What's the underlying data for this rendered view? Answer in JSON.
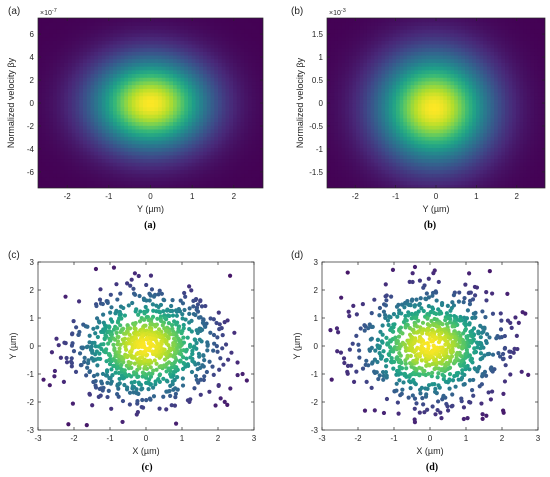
{
  "colors": {
    "axis": "#262626",
    "viridis": [
      "#440154",
      "#482878",
      "#3e4a89",
      "#31688e",
      "#26828e",
      "#1f9e89",
      "#35b779",
      "#6ece58",
      "#b5de2b",
      "#fde725"
    ]
  },
  "chart_data": [
    {
      "type": "heatmap",
      "panel": "(a)",
      "caption": "(a)",
      "xlabel": "Y (µm)",
      "ylabel": "Normalized velocity βy",
      "exponent": "×10",
      "exponent_power": "-7",
      "xlim": [
        -2.7,
        2.7
      ],
      "ylim": [
        -7.4,
        7.4
      ],
      "xticks": [
        -2,
        -1,
        0,
        1,
        2
      ],
      "xtick_labels": [
        "-2",
        "-1",
        "0",
        "1",
        "2"
      ],
      "yticks": [
        -6,
        -4,
        -2,
        0,
        2,
        4,
        6
      ],
      "ytick_labels": [
        "-6",
        "-4",
        "-2",
        "0",
        "2",
        "4",
        "6"
      ],
      "grid": false,
      "distribution": {
        "model": "gaussian",
        "center_x": 0,
        "center_y": 0,
        "sigma_x": 0.95,
        "sigma_y": 2.7
      }
    },
    {
      "type": "heatmap",
      "panel": "(b)",
      "caption": "(b)",
      "xlabel": "Y (µm)",
      "ylabel": "Normalized velocity βy",
      "exponent": "×10",
      "exponent_power": "-3",
      "xlim": [
        -2.7,
        2.7
      ],
      "ylim": [
        -1.85,
        1.85
      ],
      "xticks": [
        -2,
        -1,
        0,
        1,
        2
      ],
      "xtick_labels": [
        "-2",
        "-1",
        "0",
        "1",
        "2"
      ],
      "yticks": [
        -1.5,
        -1,
        -0.5,
        0,
        0.5,
        1,
        1.5
      ],
      "ytick_labels": [
        "-1.5",
        "-1",
        "-0.5",
        "0",
        "0.5",
        "1",
        "1.5"
      ],
      "grid": false,
      "distribution": {
        "model": "gaussian",
        "center_x": -0.05,
        "center_y": -0.1,
        "sigma_x": 0.95,
        "sigma_y": 0.8
      }
    },
    {
      "type": "scatter",
      "panel": "(c)",
      "caption": "(c)",
      "xlabel": "X (µm)",
      "ylabel": "Y (µm)",
      "xlim": [
        -3,
        3
      ],
      "ylim": [
        -3,
        3
      ],
      "xticks": [
        -3,
        -2,
        -1,
        0,
        1,
        2,
        3
      ],
      "xtick_labels": [
        "-3",
        "-2",
        "-1",
        "0",
        "1",
        "2",
        "3"
      ],
      "yticks": [
        -3,
        -2,
        -1,
        0,
        1,
        2,
        3
      ],
      "ytick_labels": [
        "-3",
        "-2",
        "-1",
        "0",
        "1",
        "2",
        "3"
      ],
      "grid": false,
      "distribution": {
        "model": "gaussian",
        "count": 900,
        "sigma_x": 1.0,
        "sigma_y": 1.0,
        "seed": 11
      },
      "color_by": "density"
    },
    {
      "type": "scatter",
      "panel": "(d)",
      "caption": "(d)",
      "xlabel": "X (µm)",
      "ylabel": "Y (µm)",
      "xlim": [
        -3,
        3
      ],
      "ylim": [
        -3,
        3
      ],
      "xticks": [
        -3,
        -2,
        -1,
        0,
        1,
        2,
        3
      ],
      "xtick_labels": [
        "-3",
        "-2",
        "-1",
        "0",
        "1",
        "2",
        "3"
      ],
      "yticks": [
        -3,
        -2,
        -1,
        0,
        1,
        2,
        3
      ],
      "ytick_labels": [
        "-3",
        "-2",
        "-1",
        "0",
        "1",
        "2",
        "3"
      ],
      "grid": false,
      "distribution": {
        "model": "gaussian",
        "count": 900,
        "sigma_x": 1.0,
        "sigma_y": 1.0,
        "seed": 23
      },
      "color_by": "density"
    }
  ]
}
